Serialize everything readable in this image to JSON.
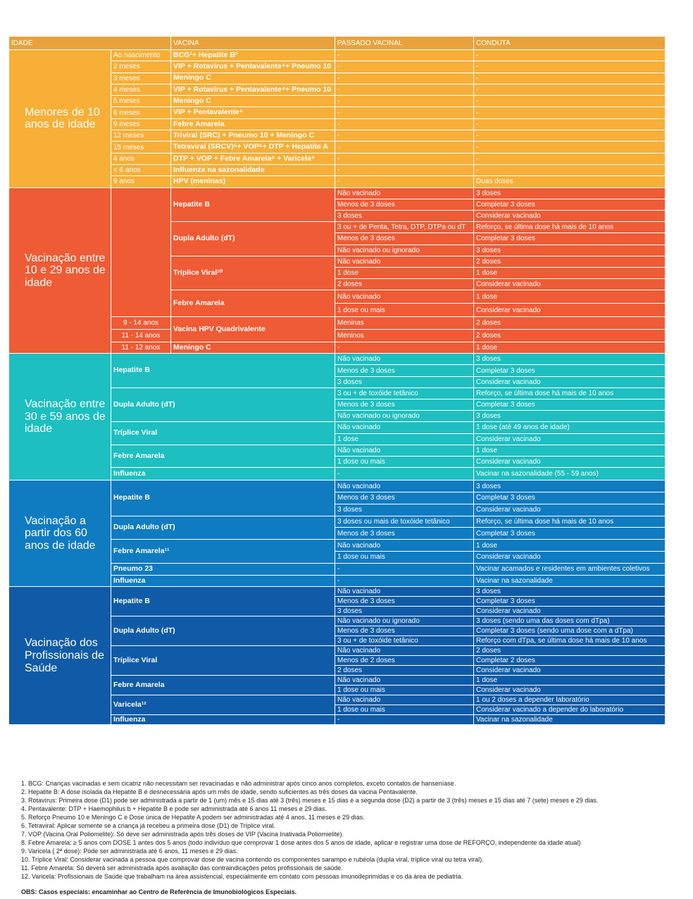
{
  "headers": [
    "IDADE",
    "VACINA",
    "PASSADO VACINAL",
    "CONDUTA"
  ],
  "groups": [
    {
      "title": "Menores de 10 anos de idade",
      "color": "#F7AF38",
      "rows": [
        {
          "age": "Ao nascimento",
          "vaccine": "BCG¹+ Hepatite B²",
          "past": "-",
          "conduct": "-"
        },
        {
          "age": "2 meses",
          "vaccine": "VIP + Rotavírus + Pentavalente⁴+ Pneumo 10",
          "past": "-",
          "conduct": "-"
        },
        {
          "age": "3 meses",
          "vaccine": "Meningo C",
          "past": "-",
          "conduct": "-"
        },
        {
          "age": "4 meses",
          "vaccine": "VIP + Rotavírus + Pentavalente⁴+ Pneumo 10",
          "past": "-",
          "conduct": "-"
        },
        {
          "age": "5 meses",
          "vaccine": "Meningo C",
          "past": "-",
          "conduct": "-"
        },
        {
          "age": "6 meses",
          "vaccine": "VIP + Pentavalente⁴",
          "past": "-",
          "conduct": "-"
        },
        {
          "age": "9 meses",
          "vaccine": "Febre Amarela",
          "past": "-",
          "conduct": "-"
        },
        {
          "age": "12 meses",
          "vaccine": "Triviral (SRC) + Pneumo 10 + Meningo C",
          "past": "-",
          "conduct": "-"
        },
        {
          "age": "15 meses",
          "vaccine": "Tetraviral (SRCV)⁵+ VOP⁶+ DTP + Hepatite A",
          "past": "-",
          "conduct": "-"
        },
        {
          "age": "4 anos",
          "vaccine": "DTP + VOP + Febre Amarela⁸ + Varicela⁹",
          "past": "-",
          "conduct": "-"
        },
        {
          "age": "< 6 anos",
          "vaccine": "Influenza na sazonalidade",
          "past": "-",
          "conduct": "-"
        },
        {
          "age": "9 anos",
          "vaccine": "HPV (meninas)",
          "past": "-",
          "conduct": "Duas doses"
        }
      ]
    },
    {
      "title": "Vacinação entre 10 e 29 anos de idade",
      "color": "#EF5B34",
      "vaccines": [
        {
          "name": "Hepatite B",
          "rows": [
            [
              "Não vacinado",
              "3 doses"
            ],
            [
              "Menos de 3 doses",
              "Completar 3 doses"
            ],
            [
              "3 doses",
              "Considerar vacinado"
            ]
          ]
        },
        {
          "name": "Dupla Adulto (dT)",
          "rows": [
            [
              "3 ou + de Penta, Tetra, DTP, DTPa ou dT",
              "Reforço, se última dose há mais de 10 anos"
            ],
            [
              "Menos de 3 doses",
              "Completar 3 doses"
            ],
            [
              "Não vacinado ou ignorado",
              "3 doses"
            ]
          ]
        },
        {
          "name": "Tríplice Viral¹⁰",
          "rows": [
            [
              "Não vacinado",
              "2 doses"
            ],
            [
              "1 dose",
              "1 dose"
            ],
            [
              "2 doses",
              "Considerar vacinado"
            ]
          ]
        },
        {
          "name": "Febre Amarela",
          "rows": [
            [
              "Não vacinado",
              "1 dose"
            ],
            [
              "1 dose ou mais",
              "Considerar vacinado"
            ]
          ]
        }
      ],
      "hpv": {
        "name": "Vacina HPV Quadrivalente",
        "rows": [
          [
            "9 - 14 anos",
            "Meninas",
            "2 doses"
          ],
          [
            "11 - 14 anos",
            "Meninos",
            "2 doses"
          ]
        ]
      },
      "meningo": {
        "age": "11 - 12 anos",
        "name": "Meningo C",
        "past": "-",
        "conduct": "1 dose"
      }
    },
    {
      "title": "Vacinação entre 30 e 59 anos de idade",
      "color": "#1DBFC0",
      "vaccines": [
        {
          "name": "Hepatite B",
          "rows": [
            [
              "Não vacinado",
              "3 doses"
            ],
            [
              "Menos de 3 doses",
              "Completar 3 doses"
            ],
            [
              "3 doses",
              "Considerar vacinado"
            ]
          ]
        },
        {
          "name": "Dupla Adulto (dT)",
          "rows": [
            [
              "3 ou + de toxóide tetânico",
              "Reforço, se última dose há mais de 10 anos"
            ],
            [
              "Menos de 3 doses",
              "Completar 3 doses"
            ],
            [
              "Não vacinado ou ignorado",
              "3 doses"
            ]
          ]
        },
        {
          "name": "Tríplice Viral",
          "rows": [
            [
              "Não vacinado",
              "1 dose (até 49 anos de idade)"
            ],
            [
              "1 dose",
              "Considerar vacinado"
            ]
          ]
        },
        {
          "name": "Febre Amarela",
          "rows": [
            [
              "Não vacinado",
              "1 dose"
            ],
            [
              "1 dose ou mais",
              "Considerar vacinado"
            ]
          ]
        },
        {
          "name": "Influenza",
          "rows": [
            [
              "-",
              "Vacinar na sazonalidade (55 - 59 anos)"
            ]
          ]
        }
      ]
    },
    {
      "title": "Vacinação a partir dos 60 anos de idade",
      "color": "#0F7BC1",
      "vaccines": [
        {
          "name": "Hepatite B",
          "rows": [
            [
              "Não vacinado",
              "3 doses"
            ],
            [
              "Menos de 3 doses",
              "Completar 3 doses"
            ],
            [
              "3 doses",
              "Considerar vacinado"
            ]
          ]
        },
        {
          "name": "Dupla Adulto (dT)",
          "rows": [
            [
              "3 doses ou mais de toxóide tetânico",
              "Reforço, se última dose há mais de 10 anos"
            ],
            [
              "Menos de 3 doses",
              "Completar 3 doses"
            ]
          ]
        },
        {
          "name": "Febre Amarela¹¹",
          "rows": [
            [
              "Não vacinado",
              "1 dose"
            ],
            [
              "1 dose ou mais",
              "Considerar vacinado"
            ]
          ]
        },
        {
          "name": "Pneumo 23",
          "rows": [
            [
              "-",
              "Vacinar acamados e residentes em ambientes coletivos"
            ]
          ]
        },
        {
          "name": "Influenza",
          "rows": [
            [
              "-",
              "Vacinar na sazonalidade"
            ]
          ]
        }
      ]
    },
    {
      "title": "Vacinação dos Profissionais de Saúde",
      "color": "#0F5BA7",
      "vaccines": [
        {
          "name": "Hepatite B",
          "rows": [
            [
              "Não vacinado",
              "3 doses"
            ],
            [
              "Menos de 3 doses",
              "Completar 3 doses"
            ],
            [
              "3 doses",
              "Considerar vacinado"
            ]
          ]
        },
        {
          "name": "Dupla Adulto (dT)",
          "rows": [
            [
              "Não vacinado ou ignorado",
              "3 doses (sendo uma das doses com dTpa)"
            ],
            [
              "Menos de 3 doses",
              "Completar 3 doses (sendo uma dose com a dTpa)"
            ],
            [
              "3 ou + de toxóide tetânico",
              "Reforço com dTpa, se última dose há mais de 10 anos"
            ]
          ]
        },
        {
          "name": "Tríplice Viral",
          "rows": [
            [
              "Não vacinado",
              "2 doses"
            ],
            [
              "Menos de 2 doses",
              "Completar 2 doses"
            ],
            [
              "2 doses",
              "Considerar vacinado"
            ]
          ]
        },
        {
          "name": "Febre Amarela",
          "rows": [
            [
              "Não vacinado",
              "1 dose"
            ],
            [
              "1 dose ou mais",
              "Considerar vacinado"
            ]
          ]
        },
        {
          "name": "Varicela¹²",
          "rows": [
            [
              "Não vacinado",
              "1 ou 2 doses a depender laboratório"
            ],
            [
              "1 dose ou mais",
              "Considerar vacinado a depender do laboratório"
            ]
          ]
        },
        {
          "name": "Influenza",
          "rows": [
            [
              "-",
              "Vacinar na sazonalidade"
            ]
          ]
        }
      ]
    }
  ],
  "notes": [
    "1. BCG: Crianças vacinadas e sem cicatriz não necessitam ser revacinadas e não administrar após cinco anos completos, exceto contatos de hanseníase.",
    "2. Hepatite B: A dose isolada da Hepatite B é desnecessária após um mês de idade, sendo suficientes as três doses da vacina  Pentavalente.",
    "3. Rotavírus: Primeira dose (D1) pode ser administrada a partir de 1 (um) mês e 15 dias até 3 (três) meses e 15 dias e a segunda dose (D2) a partir de 3 (três) meses e 15 dias até 7 (sete) meses e 29 dias.",
    "4. Pentavalente: DTP + Haemophilus b + Hepatite B e pode ser administrada até 6 anos 11 meses e 29 dias.",
    "5. Reforço Pneumo 10 e Meningo C e Dose única de Hepatite A podem ser administradas até 4 anos, 11 meses e 29 dias.",
    "6. Tetraviral: Aplicar somente se a criança já recebeu a primeira dose (D1) de Tríplice viral.",
    "7. VOP (Vacina Oral Poliomelite): Só deve ser administrada após três doses de VIP (Vacina Inativada Poliomielite).",
    "8. Febre Amarela: ≥ 5 anos com DOSE 1 antes dos 5 anos (todo indivíduo que comprovar 1 dose antes dos 5 anos de idade, aplicar e registrar uma dose de REFORÇO, independente da idade atual)",
    "9. Varicela ( 2ª dose): Pode ser administrada até 6 anos, 11 meses e 29 dias.",
    "10. Tríplice Viral: Considerar vacinada a pessoa que comprovar dose de vacina contendo os componentes sarampo e rubéola (dupla viral, tríplice viral ou tetra viral).",
    "11. Febre Amarela: Só deverá ser administrada após avaliação das contraindicações pelos profissionais de saúde.",
    "12. Varicela: Profissionais de Saúde que trabalham na área assistencial, especialmente em contato com pessoas imunodeprimidas e os da área de pediatria."
  ],
  "obs": "OBS: Casos especiais: encaminhar ao Centro de Referência de Imunobiológicos Especiais."
}
